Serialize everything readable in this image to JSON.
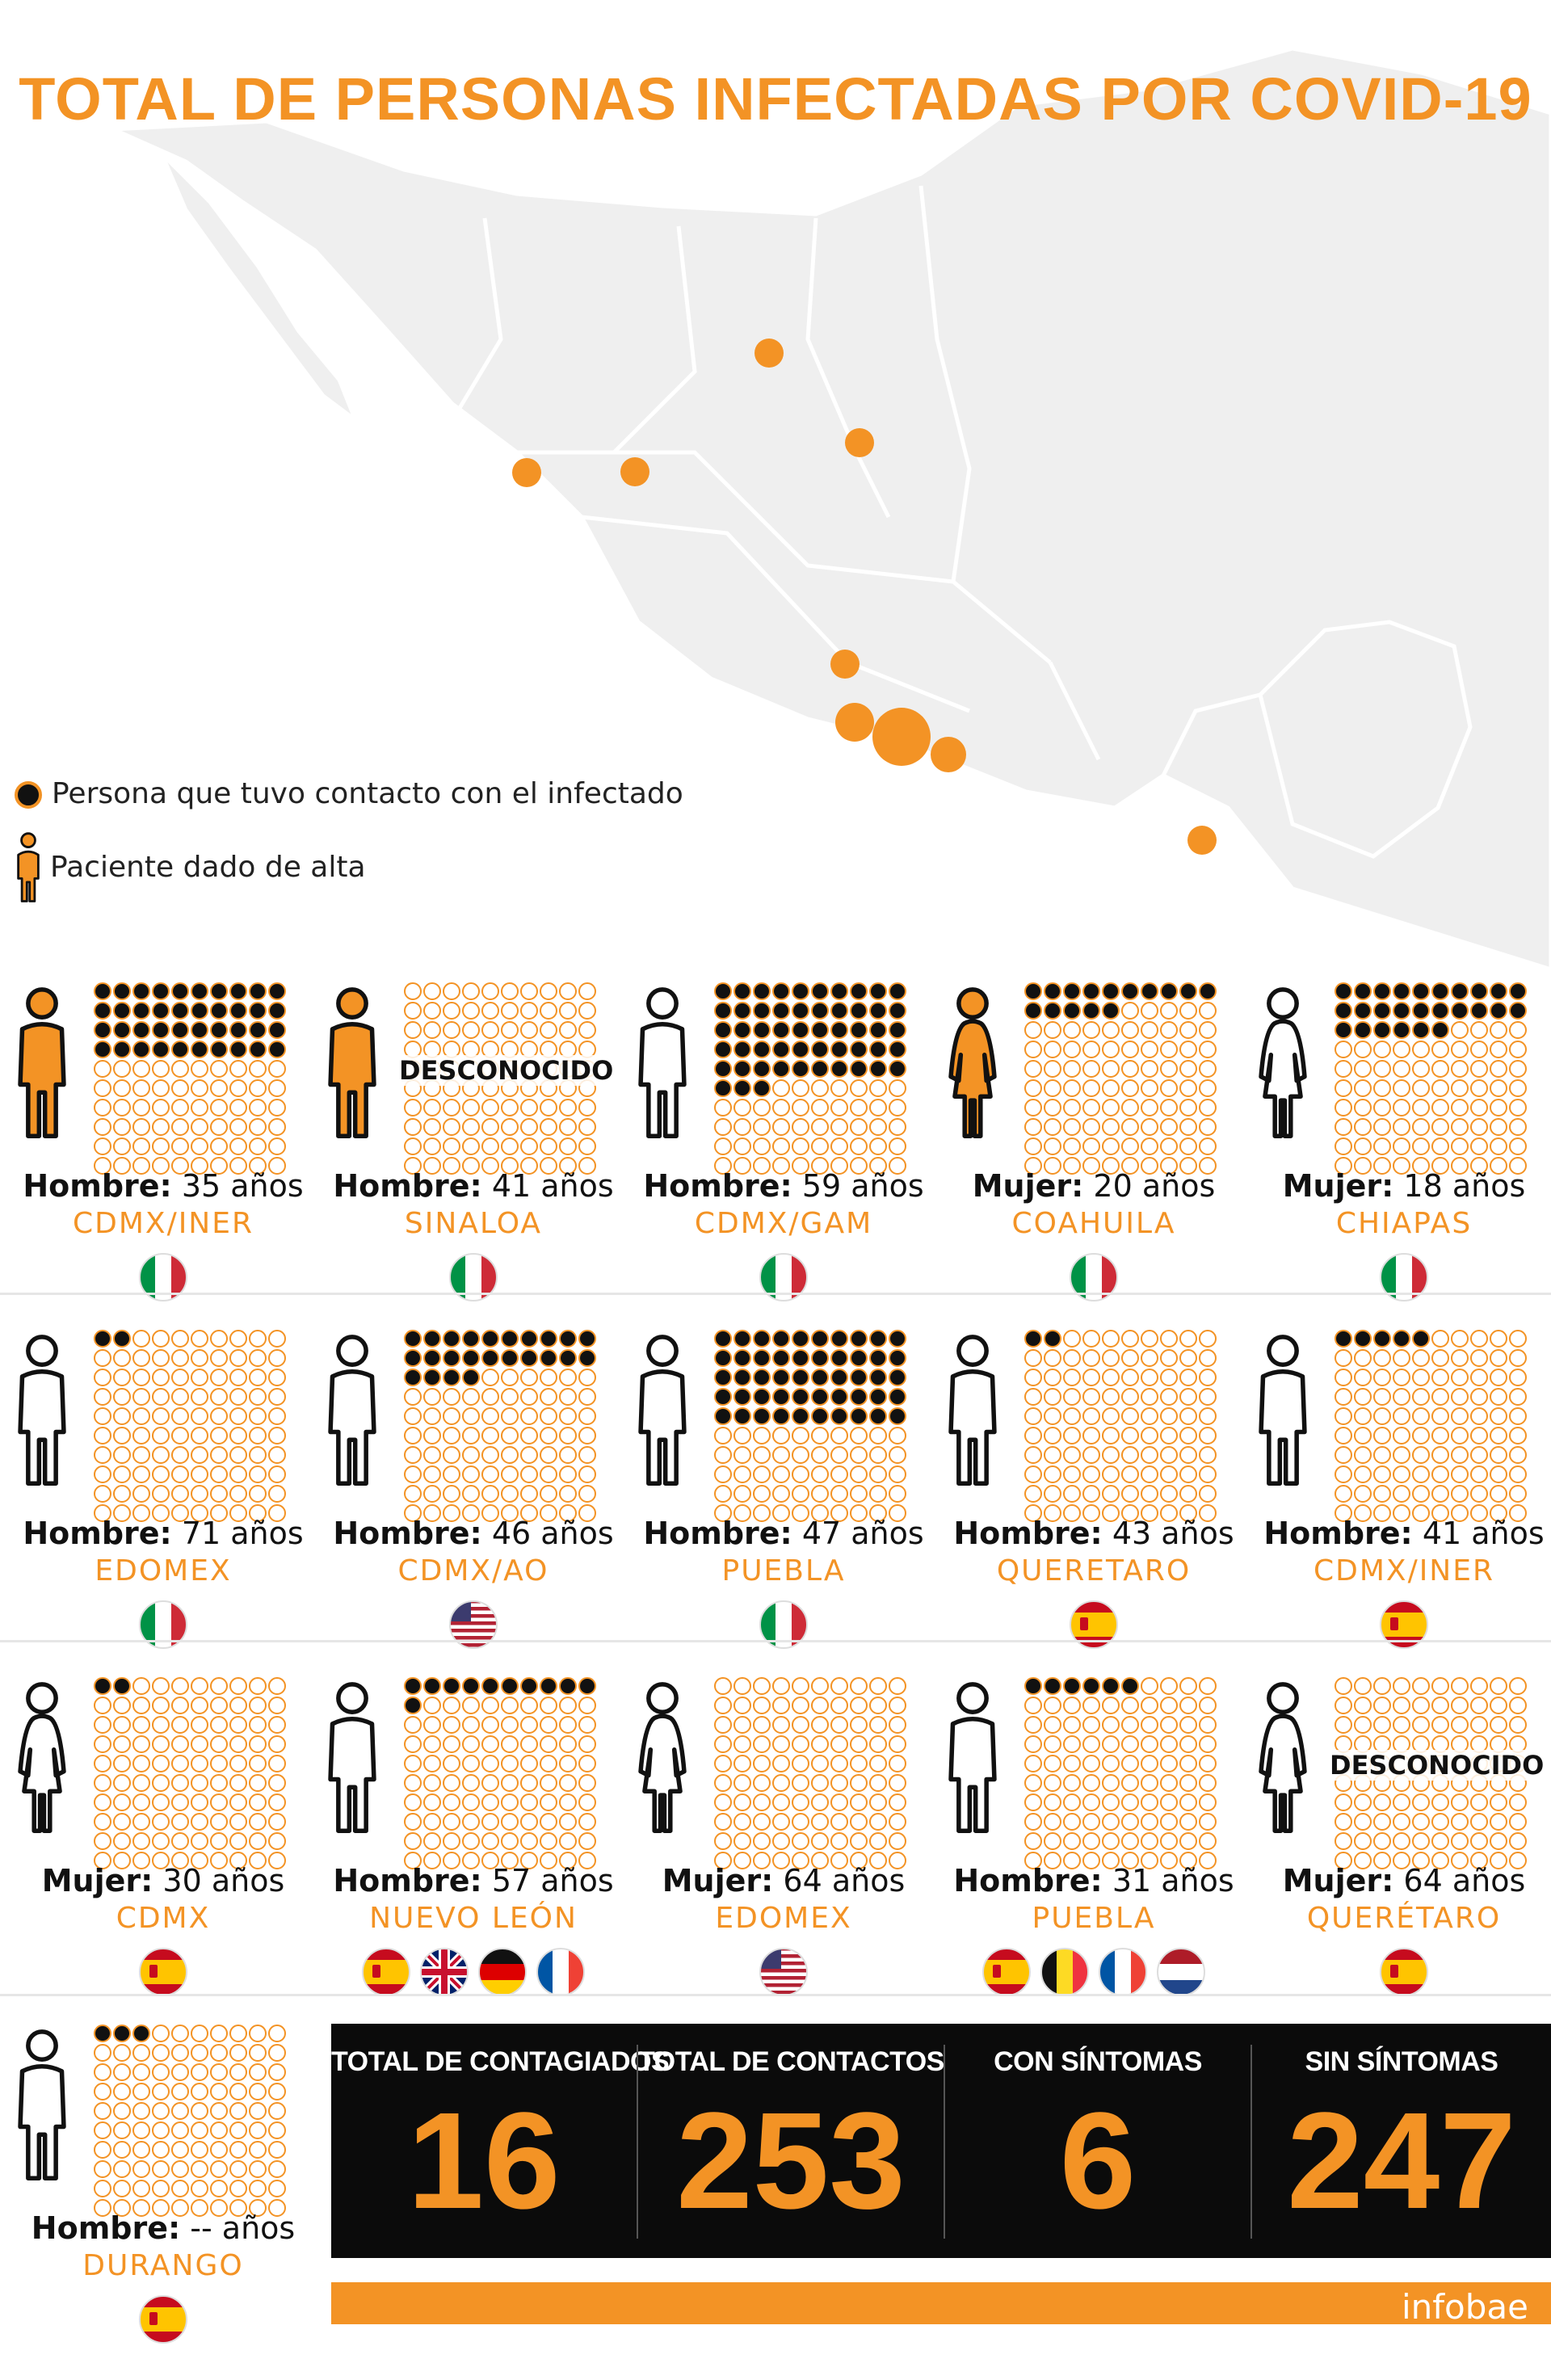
{
  "title": "TOTAL DE PERSONAS INFECTADAS POR COVID-19",
  "legend": {
    "contact": "Persona que tuvo contacto con el infectado",
    "discharged": "Paciente dado de alta"
  },
  "colors": {
    "accent": "#f39325",
    "contact_fill": "#111111",
    "dark": "#0b0b0b"
  },
  "cases": [
    {
      "sex_label": "Hombre:",
      "age": "35 años",
      "place": "CDMX/INER",
      "figure": "man",
      "discharged": true,
      "contacts": 40,
      "flags": [
        "italy"
      ]
    },
    {
      "sex_label": "Hombre:",
      "age": "41 años",
      "place": "SINALOA",
      "figure": "man",
      "discharged": true,
      "contacts": null,
      "contacts_text": "DESCONOCIDO",
      "flags": [
        "italy"
      ]
    },
    {
      "sex_label": "Hombre:",
      "age": "59 años",
      "place": "CDMX/GAM",
      "figure": "man",
      "discharged": false,
      "contacts": 53,
      "flags": [
        "italy"
      ]
    },
    {
      "sex_label": "Mujer:",
      "age": "20 años",
      "place": "COAHUILA",
      "figure": "woman",
      "discharged": true,
      "contacts": 15,
      "flags": [
        "italy"
      ]
    },
    {
      "sex_label": "Mujer:",
      "age": "18 años",
      "place": "CHIAPAS",
      "figure": "woman",
      "discharged": false,
      "contacts": 26,
      "flags": [
        "italy"
      ]
    },
    {
      "sex_label": "Hombre:",
      "age": "71 años",
      "place": "EDOMEX",
      "figure": "man",
      "discharged": false,
      "contacts": 2,
      "flags": [
        "italy"
      ]
    },
    {
      "sex_label": "Hombre:",
      "age": "46 años",
      "place": "CDMX/AO",
      "figure": "man",
      "discharged": false,
      "contacts": 24,
      "flags": [
        "usa"
      ]
    },
    {
      "sex_label": "Hombre:",
      "age": "47 años",
      "place": "PUEBLA",
      "figure": "man",
      "discharged": false,
      "contacts": 50,
      "flags": [
        "italy"
      ]
    },
    {
      "sex_label": "Hombre:",
      "age": "43 años",
      "place": "QUERETARO",
      "figure": "man",
      "discharged": false,
      "contacts": 2,
      "flags": [
        "spain"
      ]
    },
    {
      "sex_label": "Hombre:",
      "age": "41 años",
      "place": "CDMX/INER",
      "figure": "man",
      "discharged": false,
      "contacts": 5,
      "flags": [
        "spain"
      ]
    },
    {
      "sex_label": "Mujer:",
      "age": "30 años",
      "place": "CDMX",
      "figure": "woman",
      "discharged": false,
      "contacts": 2,
      "flags": [
        "spain"
      ]
    },
    {
      "sex_label": "Hombre:",
      "age": "57 años",
      "place": "NUEVO LEÓN",
      "figure": "man",
      "discharged": false,
      "contacts": 11,
      "flags": [
        "spain",
        "uk",
        "germany",
        "france"
      ]
    },
    {
      "sex_label": "Mujer:",
      "age": "64 años",
      "place": "EDOMEX",
      "figure": "woman",
      "discharged": false,
      "contacts": 0,
      "flags": [
        "usa"
      ]
    },
    {
      "sex_label": "Hombre:",
      "age": "31 años",
      "place": "PUEBLA",
      "figure": "man",
      "discharged": false,
      "contacts": 6,
      "flags": [
        "spain",
        "belgium",
        "france",
        "netherlands"
      ]
    },
    {
      "sex_label": "Mujer:",
      "age": "64 años",
      "place": "QUERÉTARO",
      "figure": "woman",
      "discharged": false,
      "contacts": null,
      "contacts_text": "DESCONOCIDO",
      "flags": [
        "spain"
      ]
    },
    {
      "sex_label": "Hombre:",
      "age": "-- años",
      "place": "DURANGO",
      "figure": "man",
      "discharged": false,
      "contacts": 3,
      "flags": [
        "spain"
      ]
    }
  ],
  "totals": [
    {
      "label": "TOTAL DE CONTAGIADOS",
      "value": "16"
    },
    {
      "label": "TOTAL DE CONTACTOS",
      "value": "253"
    },
    {
      "label": "CON SÍNTOMAS",
      "value": "6"
    },
    {
      "label": "SIN SÍNTOMAS",
      "value": "247"
    }
  ],
  "brand": "infobae"
}
